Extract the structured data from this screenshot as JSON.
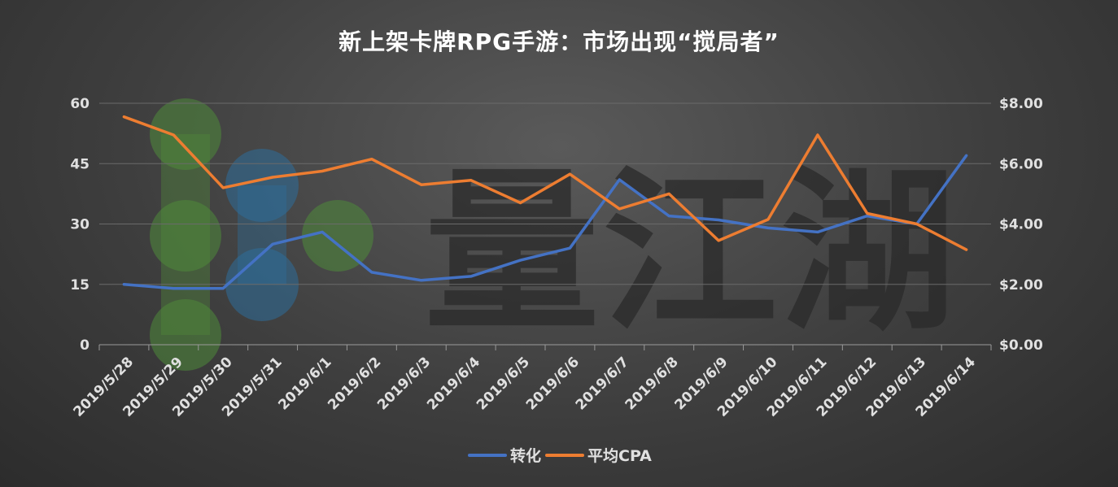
{
  "chart_data": {
    "type": "line",
    "title": "新上架卡牌RPG手游：市场出现“搅局者”",
    "watermark": "量江湖",
    "x": [
      "2019/5/28",
      "2019/5/29",
      "2019/5/30",
      "2019/5/31",
      "2019/6/1",
      "2019/6/2",
      "2019/6/3",
      "2019/6/4",
      "2019/6/5",
      "2019/6/6",
      "2019/6/7",
      "2019/6/8",
      "2019/6/9",
      "2019/6/10",
      "2019/6/11",
      "2019/6/12",
      "2019/6/13",
      "2019/6/14"
    ],
    "y_left": {
      "ticks": [
        "0",
        "15",
        "30",
        "45",
        "60"
      ],
      "ylim": [
        0,
        60
      ]
    },
    "y_right": {
      "ticks": [
        "$0.00",
        "$2.00",
        "$4.00",
        "$6.00",
        "$8.00"
      ],
      "ylim": [
        0,
        8
      ]
    },
    "grid": true,
    "legend_position": "bottom",
    "series": [
      {
        "name": "转化",
        "axis": "left",
        "color": "#4472c4",
        "values": [
          15,
          14,
          14,
          25,
          28,
          18,
          16,
          17,
          21,
          24,
          41,
          32,
          31,
          29,
          28,
          32,
          30,
          47
        ]
      },
      {
        "name": "平均CPA",
        "axis": "right",
        "color": "#ed7d31",
        "values": [
          7.55,
          6.95,
          5.2,
          5.55,
          5.75,
          6.15,
          5.3,
          5.45,
          4.7,
          5.65,
          4.5,
          5.0,
          3.45,
          4.15,
          6.95,
          4.35,
          4.0,
          3.15
        ]
      }
    ]
  }
}
